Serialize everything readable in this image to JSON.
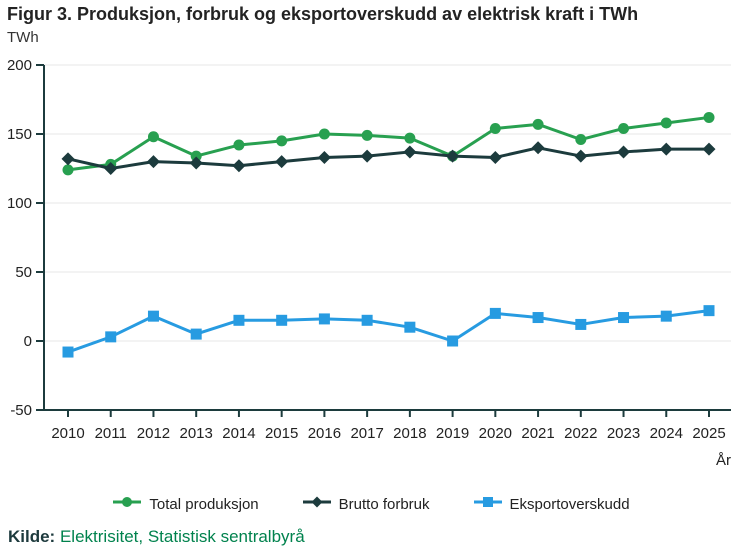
{
  "header": {
    "unit": "TWh"
  },
  "chart_data": {
    "type": "line",
    "title": "Figur 3. Produksjon, forbruk og eksportoverskudd av elektrisk kraft i TWh",
    "ylabel": "TWh",
    "xlabel": "År",
    "categories": [
      "2010",
      "2011",
      "2012",
      "2013",
      "2014",
      "2015",
      "2016",
      "2017",
      "2018",
      "2019",
      "2020",
      "2021",
      "2022",
      "2023",
      "2024",
      "2025"
    ],
    "series": [
      {
        "name": "Total produksjon",
        "color": "#28a050",
        "marker": "circle",
        "values": [
          124,
          128,
          148,
          134,
          142,
          145,
          150,
          149,
          147,
          134,
          154,
          157,
          146,
          154,
          158,
          162
        ]
      },
      {
        "name": "Brutto forbruk",
        "color": "#1c3b3d",
        "marker": "diamond",
        "values": [
          132,
          125,
          130,
          129,
          127,
          130,
          133,
          134,
          137,
          134,
          133,
          140,
          134,
          137,
          139,
          139
        ]
      },
      {
        "name": "Eksportoverskudd",
        "color": "#279be1",
        "marker": "square",
        "values": [
          -8,
          3,
          18,
          5,
          15,
          15,
          16,
          15,
          10,
          0,
          20,
          17,
          12,
          17,
          18,
          22
        ]
      }
    ],
    "ylim": [
      -50,
      200
    ],
    "ytick_interval": 50,
    "grid": true,
    "legend_position": "bottom"
  },
  "source": {
    "label": "Kilde:",
    "text": "Elektrisitet, Statistisk sentralbyrå"
  },
  "colors": {
    "axis": "#1c3b3d",
    "grid": "#e7e7e7",
    "tick_text": "#222222",
    "title_text": "#232323",
    "link_green": "#00824d"
  }
}
